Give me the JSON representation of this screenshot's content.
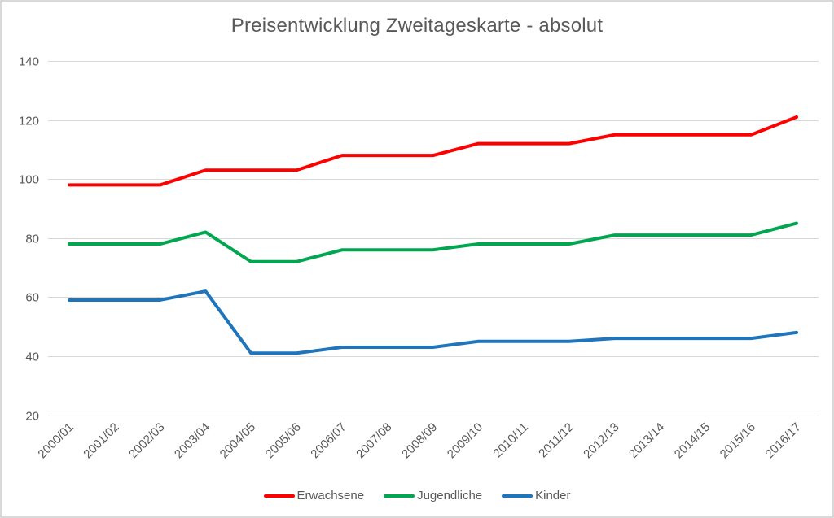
{
  "chart_data": {
    "type": "line",
    "title": "Preisentwicklung Zweitageskarte - absolut",
    "categories": [
      "2000/01",
      "2001/02",
      "2002/03",
      "2003/04",
      "2004/05",
      "2005/06",
      "2006/07",
      "2007/08",
      "2008/09",
      "2009/10",
      "2010/11",
      "2011/12",
      "2012/13",
      "2013/14",
      "2014/15",
      "2015/16",
      "2016/17"
    ],
    "series": [
      {
        "name": "Erwachsene",
        "color": "#ff0000",
        "values": [
          98,
          98,
          98,
          103,
          103,
          103,
          108,
          108,
          108,
          112,
          112,
          112,
          115,
          115,
          115,
          115,
          121
        ]
      },
      {
        "name": "Jugendliche",
        "color": "#00a650",
        "values": [
          78,
          78,
          78,
          82,
          72,
          72,
          76,
          76,
          76,
          78,
          78,
          78,
          81,
          81,
          81,
          81,
          85
        ]
      },
      {
        "name": "Kinder",
        "color": "#1f75bc",
        "values": [
          59,
          59,
          59,
          62,
          41,
          41,
          43,
          43,
          43,
          45,
          45,
          45,
          46,
          46,
          46,
          46,
          48
        ]
      }
    ],
    "y_ticks": [
      20,
      40,
      60,
      80,
      100,
      120,
      140
    ],
    "ylim": [
      20,
      140
    ],
    "xlabel": "",
    "ylabel": "",
    "grid": "horizontal-only",
    "legend_position": "bottom-center",
    "colors": {
      "grid": "#d9d9d9",
      "axis_text": "#595959",
      "title_text": "#595959",
      "background": "#ffffff",
      "frame_border": "#d9d9d9"
    }
  }
}
